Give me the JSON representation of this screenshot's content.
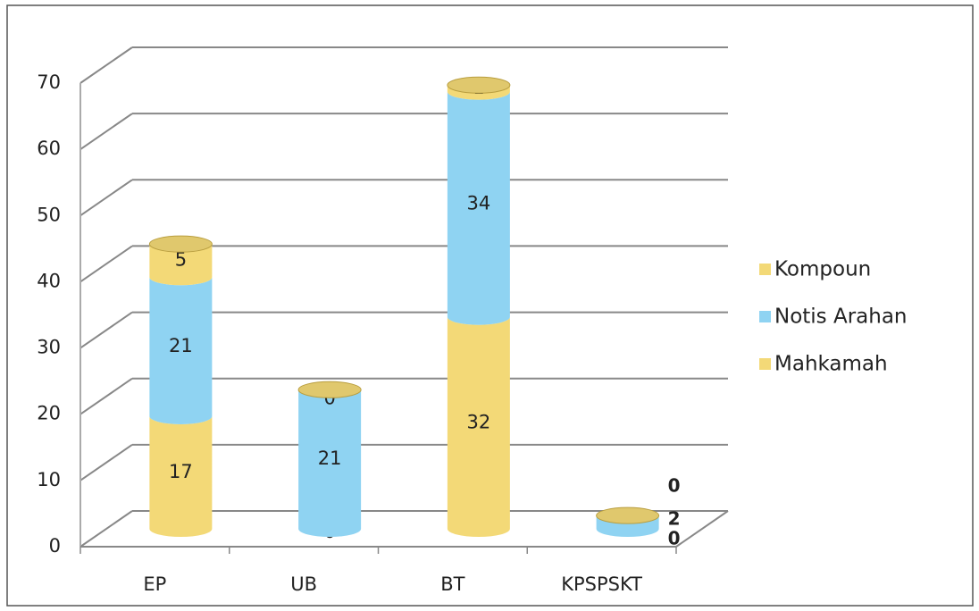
{
  "chart_data": {
    "type": "bar3d_stacked",
    "categories": [
      "EP",
      "UB",
      "BT",
      "KPSPSKT"
    ],
    "series": [
      {
        "name": "Mahkamah",
        "color": "#f3d977",
        "values": [
          17,
          0,
          32,
          0
        ]
      },
      {
        "name": "Notis Arahan",
        "color": "#8fd3f2",
        "values": [
          21,
          21,
          34,
          2
        ]
      },
      {
        "name": "Kompoun",
        "color": "#f3d977",
        "values": [
          5,
          0,
          1,
          0
        ]
      }
    ],
    "ylim": [
      0,
      70
    ],
    "yticks": [
      0,
      10,
      20,
      30,
      40,
      50,
      60,
      70
    ],
    "grid": true,
    "legend": "right"
  }
}
